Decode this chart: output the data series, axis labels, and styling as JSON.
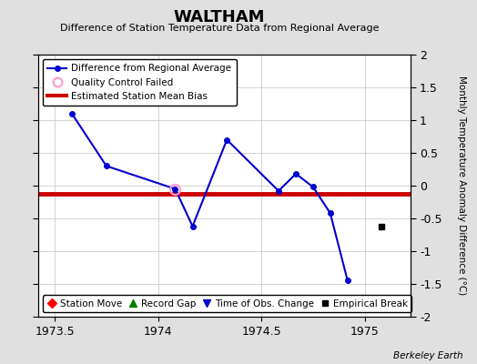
{
  "title": "WALTHAM",
  "subtitle": "Difference of Station Temperature Data from Regional Average",
  "ylabel": "Monthly Temperature Anomaly Difference (°C)",
  "xlim": [
    1973.42,
    1975.22
  ],
  "ylim": [
    -2,
    2
  ],
  "yticks": [
    -2,
    -1.5,
    -1,
    -0.5,
    0,
    0.5,
    1,
    1.5,
    2
  ],
  "xticks": [
    1973.5,
    1974,
    1974.5,
    1975
  ],
  "xtick_labels": [
    "1973.5",
    "1974",
    "1974.5",
    "1975"
  ],
  "connected_x": [
    1973.583,
    1973.75,
    1974.083,
    1974.167,
    1974.333,
    1974.583,
    1974.667,
    1974.75,
    1974.833,
    1974.917
  ],
  "connected_y": [
    1.1,
    0.3,
    -0.05,
    -0.62,
    0.7,
    -0.08,
    0.18,
    -0.02,
    -0.42,
    -1.45
  ],
  "bias_y": -0.12,
  "qc_x": [
    1974.083
  ],
  "qc_y": [
    -0.05
  ],
  "isolated_x": [
    1975.08
  ],
  "isolated_y": [
    -0.63
  ],
  "background_color": "#e0e0e0",
  "plot_bg_color": "#ffffff",
  "line_color": "#0000cc",
  "bias_color": "#cc0000",
  "qc_marker_color": "#ff99cc",
  "watermark": "Berkeley Earth",
  "legend1_labels": [
    "Difference from Regional Average",
    "Quality Control Failed",
    "Estimated Station Mean Bias"
  ],
  "legend2_labels": [
    "Station Move",
    "Record Gap",
    "Time of Obs. Change",
    "Empirical Break"
  ]
}
